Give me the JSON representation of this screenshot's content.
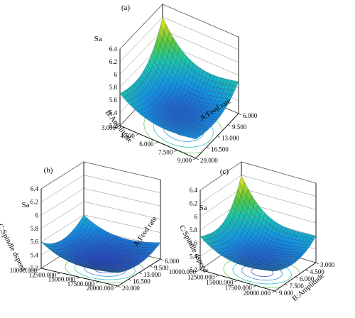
{
  "chart_data": [
    {
      "panel_label": "(a)",
      "type": "surface",
      "zlabel": "Sa",
      "z_ticks": [
        "5.2",
        "5.4",
        "5.6",
        "5.8",
        "6",
        "6.2",
        "6.4"
      ],
      "zlim": [
        5.2,
        6.4
      ],
      "x": {
        "label": "A:Feed rate",
        "ticks": [
          "6.000",
          "9.500",
          "13.000",
          "16.500",
          "20.000"
        ],
        "range": [
          6,
          20
        ]
      },
      "y": {
        "label": "B:Amplitude",
        "ticks": [
          "3.000",
          "4.500",
          "6.000",
          "7.500",
          "9.000"
        ],
        "range": [
          3,
          9
        ]
      },
      "corner_values": {
        "x_min_y_min": 6.2,
        "x_max_y_min": 5.7,
        "x_min_y_max": 5.7,
        "x_max_y_max": 5.5,
        "minimum": 5.25
      }
    },
    {
      "panel_label": "(b)",
      "type": "surface",
      "zlabel": "Sa",
      "z_ticks": [
        "5.2",
        "5.4",
        "5.6",
        "5.8",
        "6",
        "6.2",
        "6.4"
      ],
      "zlim": [
        5.2,
        6.4
      ],
      "x": {
        "label": "A:Feed rate",
        "ticks": [
          "6.000",
          "9.500",
          "13.000",
          "16.500",
          "20.000"
        ],
        "range": [
          6,
          20
        ]
      },
      "y": {
        "label": "C:Spindle dspeed",
        "ticks": [
          "10000.000",
          "12500.000",
          "15000.000",
          "17500.000",
          "20000.000"
        ],
        "range": [
          10000,
          20000
        ]
      },
      "corner_values": {
        "x_min_y_min": 5.6,
        "x_max_y_min": 5.45,
        "x_min_y_max": 5.6,
        "x_max_y_max": 5.4,
        "minimum": 5.2
      }
    },
    {
      "panel_label": "(c)",
      "type": "surface",
      "zlabel": "Sa",
      "z_ticks": [
        "5.2",
        "5.4",
        "5.6",
        "5.8",
        "6",
        "6.2",
        "6.4"
      ],
      "zlim": [
        5.2,
        6.4
      ],
      "x": {
        "label": "B:Amplitude",
        "ticks": [
          "3.000",
          "4.500",
          "6.000",
          "7.500",
          "9.000"
        ],
        "range": [
          3,
          9
        ]
      },
      "y": {
        "label": "C:Spindle dspeed",
        "ticks": [
          "10000.000",
          "12500.000",
          "15000.000",
          "17500.000",
          "20000.000"
        ],
        "range": [
          10000,
          20000
        ]
      },
      "corner_values": {
        "x_min_y_min": 6.2,
        "x_max_y_min": 5.6,
        "x_min_y_max": 5.7,
        "x_max_y_max": 5.5,
        "minimum": 5.25
      }
    }
  ]
}
